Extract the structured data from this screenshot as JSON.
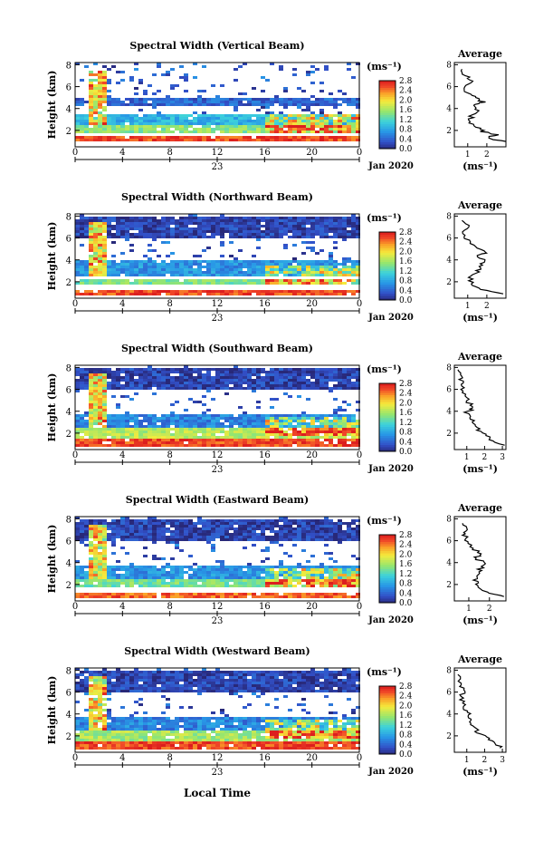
{
  "figure": {
    "date_label": "Jan 2020",
    "x_axis_label": "Local Time",
    "x_day_label": "23"
  },
  "chart_data": [
    {
      "type": "heatmap",
      "title": "Spectral Width (Vertical Beam)",
      "xlabel": "",
      "ylabel": "Height (km)",
      "x_ticks": [
        "0",
        "4",
        "8",
        "12",
        "16",
        "20",
        "0"
      ],
      "xlim": [
        0,
        24
      ],
      "ylim": [
        0.5,
        8.2
      ],
      "y_ticks": [
        2,
        4,
        6,
        8
      ],
      "colorbar": {
        "unit": "(ms⁻¹)",
        "ticks": [
          "0.0",
          "0.4",
          "0.8",
          "1.2",
          "1.6",
          "2.0",
          "2.4",
          "2.8"
        ],
        "range": [
          0,
          2.8
        ]
      },
      "average_profile": {
        "title": "Average",
        "xlabel": "(ms⁻¹)",
        "x_ticks": [
          "1",
          "2"
        ],
        "xlim": [
          0.3,
          3.0
        ],
        "ylim": [
          0.5,
          8.2
        ],
        "y_ticks": [
          2,
          4,
          6,
          8
        ],
        "points": [
          [
            2.9,
            1.0
          ],
          [
            2.0,
            1.3
          ],
          [
            2.5,
            1.6
          ],
          [
            1.8,
            1.9
          ],
          [
            1.5,
            2.3
          ],
          [
            1.1,
            2.8
          ],
          [
            1.2,
            3.3
          ],
          [
            1.6,
            3.8
          ],
          [
            1.3,
            4.3
          ],
          [
            1.8,
            4.6
          ],
          [
            1.4,
            5.0
          ],
          [
            1.0,
            5.4
          ],
          [
            0.8,
            6.0
          ],
          [
            1.2,
            6.5
          ],
          [
            0.9,
            7.0
          ],
          [
            0.7,
            7.6
          ]
        ]
      },
      "layers": [
        [
          1.0,
          1.5,
          2.6
        ],
        [
          1.9,
          2.6,
          1.5
        ],
        [
          2.6,
          3.5,
          0.9
        ],
        [
          4.4,
          5.0,
          0.4
        ]
      ]
    },
    {
      "type": "heatmap",
      "title": "Spectral Width (Northward Beam)",
      "xlabel": "",
      "ylabel": "Height (km)",
      "x_ticks": [
        "0",
        "4",
        "8",
        "12",
        "16",
        "20",
        "0"
      ],
      "xlim": [
        0,
        24
      ],
      "ylim": [
        0.5,
        8.2
      ],
      "y_ticks": [
        2,
        4,
        6,
        8
      ],
      "colorbar": {
        "unit": "(ms⁻¹)",
        "ticks": [
          "0.0",
          "0.4",
          "0.8",
          "1.2",
          "1.6",
          "2.0",
          "2.4",
          "2.8"
        ],
        "range": [
          0,
          2.8
        ]
      },
      "average_profile": {
        "title": "Average",
        "xlabel": "(ms⁻¹)",
        "x_ticks": [
          "1",
          "2"
        ],
        "xlim": [
          0.3,
          3.0
        ],
        "ylim": [
          0.5,
          8.2
        ],
        "y_ticks": [
          2,
          4,
          6,
          8
        ],
        "points": [
          [
            2.9,
            0.9
          ],
          [
            1.6,
            1.3
          ],
          [
            1.2,
            1.8
          ],
          [
            1.1,
            2.4
          ],
          [
            1.5,
            2.9
          ],
          [
            1.6,
            3.4
          ],
          [
            1.9,
            3.9
          ],
          [
            1.4,
            4.4
          ],
          [
            2.0,
            4.7
          ],
          [
            1.3,
            5.2
          ],
          [
            1.0,
            5.8
          ],
          [
            0.8,
            6.4
          ],
          [
            1.1,
            7.0
          ],
          [
            0.7,
            7.6
          ]
        ]
      },
      "layers": [
        [
          0.9,
          1.4,
          2.6
        ],
        [
          1.8,
          2.4,
          1.4
        ],
        [
          2.6,
          4.0,
          0.7
        ],
        [
          6.0,
          8.0,
          0.2
        ]
      ]
    },
    {
      "type": "heatmap",
      "title": "Spectral Width (Southward Beam)",
      "xlabel": "",
      "ylabel": "Height (km)",
      "x_ticks": [
        "0",
        "4",
        "8",
        "12",
        "16",
        "20",
        "0"
      ],
      "xlim": [
        0,
        24
      ],
      "ylim": [
        0.5,
        8.2
      ],
      "y_ticks": [
        2,
        4,
        6,
        8
      ],
      "colorbar": {
        "unit": "(ms⁻¹)",
        "ticks": [
          "0.0",
          "0.4",
          "0.8",
          "1.2",
          "1.6",
          "2.0",
          "2.4",
          "2.8"
        ],
        "range": [
          0,
          2.8
        ]
      },
      "average_profile": {
        "title": "Average",
        "xlabel": "(ms⁻¹)",
        "x_ticks": [
          "1",
          "2",
          "3"
        ],
        "xlim": [
          0.3,
          3.2
        ],
        "ylim": [
          0.5,
          8.2
        ],
        "y_ticks": [
          2,
          4,
          6,
          8
        ],
        "points": [
          [
            3.0,
            0.9
          ],
          [
            2.4,
            1.4
          ],
          [
            2.0,
            1.9
          ],
          [
            1.6,
            2.4
          ],
          [
            1.4,
            2.9
          ],
          [
            1.3,
            3.4
          ],
          [
            1.0,
            3.9
          ],
          [
            1.4,
            4.3
          ],
          [
            1.1,
            4.8
          ],
          [
            0.9,
            5.4
          ],
          [
            0.7,
            6.0
          ],
          [
            0.8,
            6.6
          ],
          [
            0.6,
            7.2
          ],
          [
            0.5,
            7.8
          ]
        ]
      },
      "layers": [
        [
          0.8,
          1.5,
          2.6
        ],
        [
          1.7,
          2.6,
          1.7
        ],
        [
          2.6,
          3.8,
          0.6
        ],
        [
          6.0,
          8.0,
          0.2
        ]
      ]
    },
    {
      "type": "heatmap",
      "title": "Spectral Width (Eastward Beam)",
      "xlabel": "",
      "ylabel": "Height (km)",
      "x_ticks": [
        "0",
        "4",
        "8",
        "12",
        "16",
        "20",
        "0"
      ],
      "xlim": [
        0,
        24
      ],
      "ylim": [
        0.5,
        8.2
      ],
      "y_ticks": [
        2,
        4,
        6,
        8
      ],
      "colorbar": {
        "unit": "(ms⁻¹)",
        "ticks": [
          "0.0",
          "0.4",
          "0.8",
          "1.2",
          "1.6",
          "2.0",
          "2.4",
          "2.8"
        ],
        "range": [
          0,
          2.8
        ]
      },
      "average_profile": {
        "title": "Average",
        "xlabel": "(ms⁻¹)",
        "x_ticks": [
          "1",
          "2"
        ],
        "xlim": [
          0.3,
          2.8
        ],
        "ylim": [
          0.5,
          8.2
        ],
        "y_ticks": [
          2,
          4,
          6,
          8
        ],
        "points": [
          [
            2.6,
            0.9
          ],
          [
            1.8,
            1.3
          ],
          [
            1.5,
            1.9
          ],
          [
            1.3,
            2.4
          ],
          [
            1.6,
            2.9
          ],
          [
            1.5,
            3.4
          ],
          [
            1.9,
            3.9
          ],
          [
            1.3,
            4.4
          ],
          [
            1.6,
            4.8
          ],
          [
            1.2,
            5.3
          ],
          [
            0.9,
            5.9
          ],
          [
            0.8,
            6.5
          ],
          [
            1.0,
            7.0
          ],
          [
            0.7,
            7.6
          ]
        ]
      },
      "layers": [
        [
          0.8,
          1.3,
          2.5
        ],
        [
          1.8,
          2.6,
          1.4
        ],
        [
          2.6,
          3.8,
          0.7
        ],
        [
          6.0,
          8.0,
          0.2
        ]
      ]
    },
    {
      "type": "heatmap",
      "title": "Spectral Width (Westward Beam)",
      "xlabel": "Local Time",
      "ylabel": "Height (km)",
      "x_ticks": [
        "0",
        "4",
        "8",
        "12",
        "16",
        "20",
        "0"
      ],
      "xlim": [
        0,
        24
      ],
      "ylim": [
        0.5,
        8.2
      ],
      "y_ticks": [
        2,
        4,
        6,
        8
      ],
      "colorbar": {
        "unit": "(ms⁻¹)",
        "ticks": [
          "0.0",
          "0.4",
          "0.8",
          "1.2",
          "1.6",
          "2.0",
          "2.4",
          "2.8"
        ],
        "range": [
          0,
          2.8
        ]
      },
      "average_profile": {
        "title": "Average",
        "xlabel": "(ms⁻¹)",
        "x_ticks": [
          "1",
          "2",
          "3"
        ],
        "xlim": [
          0.3,
          3.2
        ],
        "ylim": [
          0.5,
          8.2
        ],
        "y_ticks": [
          2,
          4,
          6,
          8
        ],
        "points": [
          [
            3.0,
            0.9
          ],
          [
            2.5,
            1.4
          ],
          [
            2.0,
            1.9
          ],
          [
            1.6,
            2.4
          ],
          [
            1.3,
            2.9
          ],
          [
            1.1,
            3.4
          ],
          [
            1.2,
            3.9
          ],
          [
            0.9,
            4.4
          ],
          [
            0.8,
            5.0
          ],
          [
            0.7,
            5.6
          ],
          [
            0.9,
            6.2
          ],
          [
            0.6,
            6.8
          ],
          [
            0.5,
            7.6
          ]
        ]
      },
      "layers": [
        [
          0.8,
          1.5,
          2.6
        ],
        [
          1.7,
          2.6,
          1.6
        ],
        [
          2.6,
          3.8,
          0.6
        ],
        [
          6.0,
          8.0,
          0.2
        ]
      ]
    }
  ]
}
